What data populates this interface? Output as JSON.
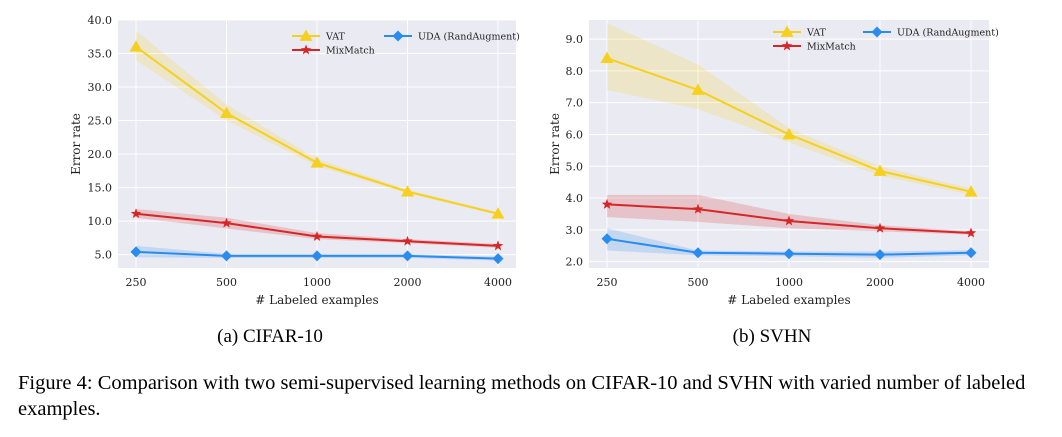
{
  "chart_data": [
    {
      "type": "line",
      "subcaption": "(a) CIFAR-10",
      "xlabel": "# Labeled examples",
      "ylabel": "Error rate",
      "categories": [
        "250",
        "500",
        "1000",
        "2000",
        "4000"
      ],
      "ylim": [
        3.0,
        40.0
      ],
      "yticks": [
        "5.0",
        "10.0",
        "15.0",
        "20.0",
        "25.0",
        "30.0",
        "35.0",
        "40.0"
      ],
      "grid": true,
      "legend": "top-right",
      "series": [
        {
          "name": "VAT",
          "color": "#f6d01e",
          "marker": "triangle",
          "values": [
            36.0,
            26.1,
            18.7,
            14.4,
            11.1
          ],
          "lower": [
            34.0,
            25.0,
            18.2,
            14.1,
            10.9
          ],
          "upper": [
            38.4,
            27.4,
            19.3,
            14.7,
            11.3
          ]
        },
        {
          "name": "MixMatch",
          "color": "#d62728",
          "marker": "star",
          "values": [
            11.1,
            9.7,
            7.7,
            7.0,
            6.3
          ],
          "lower": [
            10.5,
            8.9,
            7.3,
            6.7,
            6.0
          ],
          "upper": [
            11.8,
            10.5,
            8.2,
            7.3,
            6.6
          ]
        },
        {
          "name": "UDA (RandAugment)",
          "color": "#2b8cf0",
          "marker": "diamond",
          "values": [
            5.4,
            4.8,
            4.8,
            4.8,
            4.4
          ],
          "lower": [
            4.6,
            4.5,
            4.5,
            4.5,
            4.1
          ],
          "upper": [
            6.3,
            5.1,
            5.1,
            5.1,
            4.7
          ]
        }
      ]
    },
    {
      "type": "line",
      "subcaption": "(b) SVHN",
      "xlabel": "# Labeled examples",
      "ylabel": "Error rate",
      "categories": [
        "250",
        "500",
        "1000",
        "2000",
        "4000"
      ],
      "ylim": [
        1.8,
        9.6
      ],
      "yticks": [
        "2.0",
        "3.0",
        "4.0",
        "5.0",
        "6.0",
        "7.0",
        "8.0",
        "9.0"
      ],
      "grid": true,
      "legend": "top-right",
      "series": [
        {
          "name": "VAT",
          "color": "#f6d01e",
          "marker": "triangle",
          "values": [
            8.4,
            7.4,
            6.0,
            4.85,
            4.2
          ],
          "lower": [
            7.4,
            6.8,
            5.75,
            4.7,
            4.1
          ],
          "upper": [
            9.5,
            8.2,
            6.2,
            5.0,
            4.3
          ]
        },
        {
          "name": "MixMatch",
          "color": "#d62728",
          "marker": "star",
          "values": [
            3.8,
            3.65,
            3.28,
            3.05,
            2.9
          ],
          "lower": [
            3.4,
            3.25,
            3.05,
            2.95,
            2.85
          ],
          "upper": [
            4.1,
            4.1,
            3.5,
            3.15,
            2.95
          ]
        },
        {
          "name": "UDA (RandAugment)",
          "color": "#2b8cf0",
          "marker": "diamond",
          "values": [
            2.72,
            2.28,
            2.25,
            2.22,
            2.28
          ],
          "lower": [
            2.35,
            2.2,
            2.17,
            2.12,
            2.2
          ],
          "upper": [
            3.05,
            2.35,
            2.32,
            2.32,
            2.36
          ]
        }
      ]
    }
  ],
  "caption": "Figure 4: Comparison with two semi-supervised learning methods on CIFAR-10 and SVHN with varied number of labeled examples."
}
